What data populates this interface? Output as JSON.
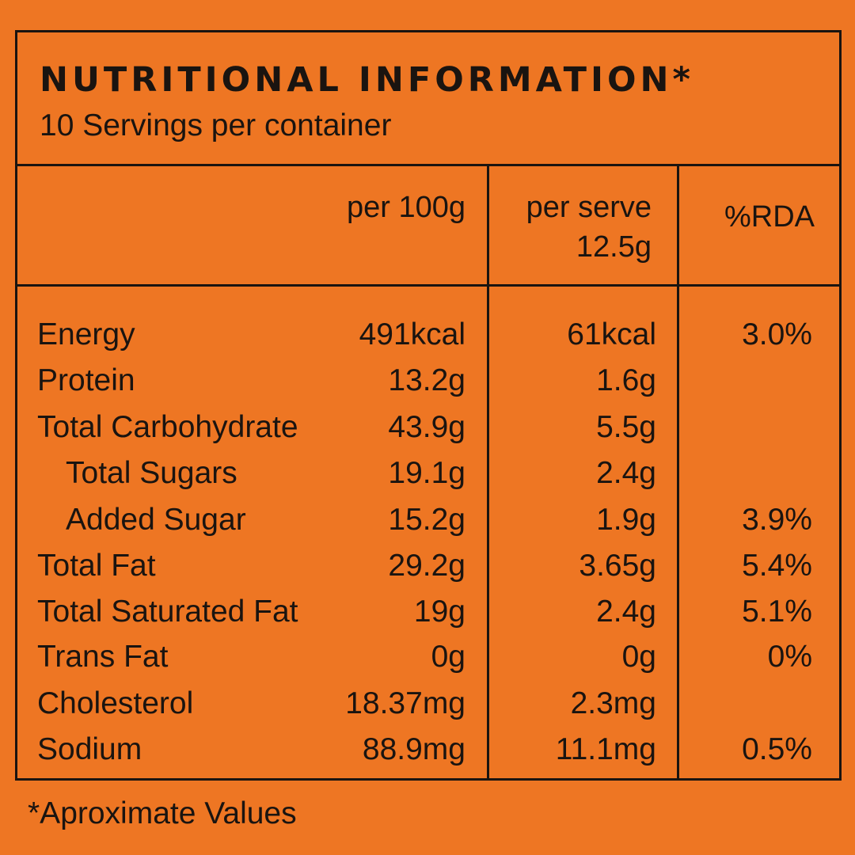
{
  "label": {
    "title": "NUTRITIONAL INFORMATION*",
    "servings": "10 Servings per container"
  },
  "headers": {
    "per_100g": "per 100g",
    "per_serve_line1": "per serve",
    "per_serve_line2": "12.5g",
    "rda": "%RDA"
  },
  "rows": [
    {
      "name": "Energy",
      "per_100g": "491kcal",
      "per_serve": "61kcal",
      "rda": "3.0%"
    },
    {
      "name": "Protein",
      "per_100g": "13.2g",
      "per_serve": "1.6g",
      "rda": ""
    },
    {
      "name": "Total Carbohydrate",
      "per_100g": "43.9g",
      "per_serve": "5.5g",
      "rda": ""
    },
    {
      "name": "Total Sugars",
      "per_100g": "19.1g",
      "per_serve": "2.4g",
      "rda": ""
    },
    {
      "name": "Added Sugar",
      "per_100g": "15.2g",
      "per_serve": "1.9g",
      "rda": "3.9%"
    },
    {
      "name": "Total Fat",
      "per_100g": "29.2g",
      "per_serve": "3.65g",
      "rda": "5.4%"
    },
    {
      "name": "Total Saturated Fat",
      "per_100g": "19g",
      "per_serve": "2.4g",
      "rda": "5.1%"
    },
    {
      "name": "Trans Fat",
      "per_100g": "0g",
      "per_serve": "0g",
      "rda": "0%"
    },
    {
      "name": "Cholesterol",
      "per_100g": "18.37mg",
      "per_serve": "2.3mg",
      "rda": ""
    },
    {
      "name": "Sodium",
      "per_100g": "88.9mg",
      "per_serve": "11.1mg",
      "rda": "0.5%"
    }
  ],
  "footnote": "*Aproximate Values",
  "colors": {
    "background": "#ee7623",
    "ink": "#1a1410"
  }
}
